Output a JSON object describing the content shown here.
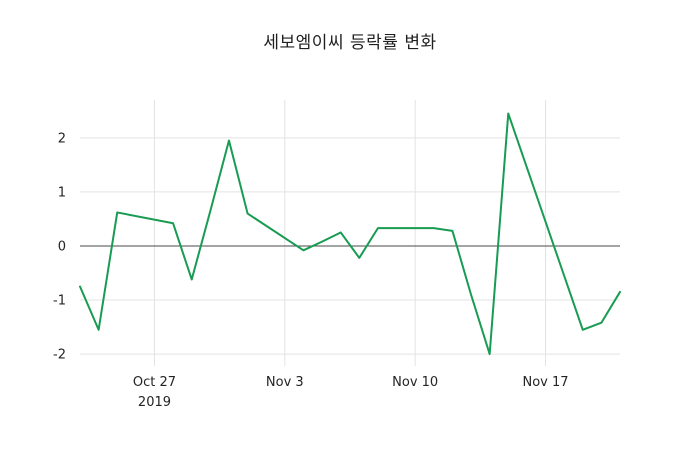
{
  "chart_data": {
    "type": "line",
    "title": "세보엠이씨 등락률 변화",
    "xlabel": "",
    "ylabel": "",
    "line_color": "#189b52",
    "grid_color": "#e3e3e3",
    "zero_line_color": "#4a4a4a",
    "text_color": "#242424",
    "grid": true,
    "zero_line": true,
    "legend": "none",
    "x_days": [
      0,
      1,
      2,
      5,
      6,
      7,
      8,
      9,
      12,
      13,
      14,
      15,
      16,
      19,
      20,
      21,
      22,
      23,
      26,
      27,
      28,
      29
    ],
    "values": [
      -0.75,
      -1.55,
      0.62,
      0.42,
      -0.62,
      0.65,
      1.95,
      0.6,
      -0.08,
      0.08,
      0.25,
      -0.22,
      0.33,
      0.33,
      0.28,
      -0.9,
      -2.0,
      2.45,
      -0.55,
      -1.55,
      -1.42,
      -0.85
    ],
    "x_ticks": [
      {
        "pos": 4,
        "label": "Oct 27",
        "sublabel": "2019"
      },
      {
        "pos": 11,
        "label": "Nov 3",
        "sublabel": ""
      },
      {
        "pos": 18,
        "label": "Nov 10",
        "sublabel": ""
      },
      {
        "pos": 25,
        "label": "Nov 17",
        "sublabel": ""
      }
    ],
    "y_ticks": [
      -2,
      -1,
      0,
      1,
      2
    ],
    "x_range": [
      0,
      29
    ],
    "y_range": [
      -2.22,
      2.7
    ]
  }
}
